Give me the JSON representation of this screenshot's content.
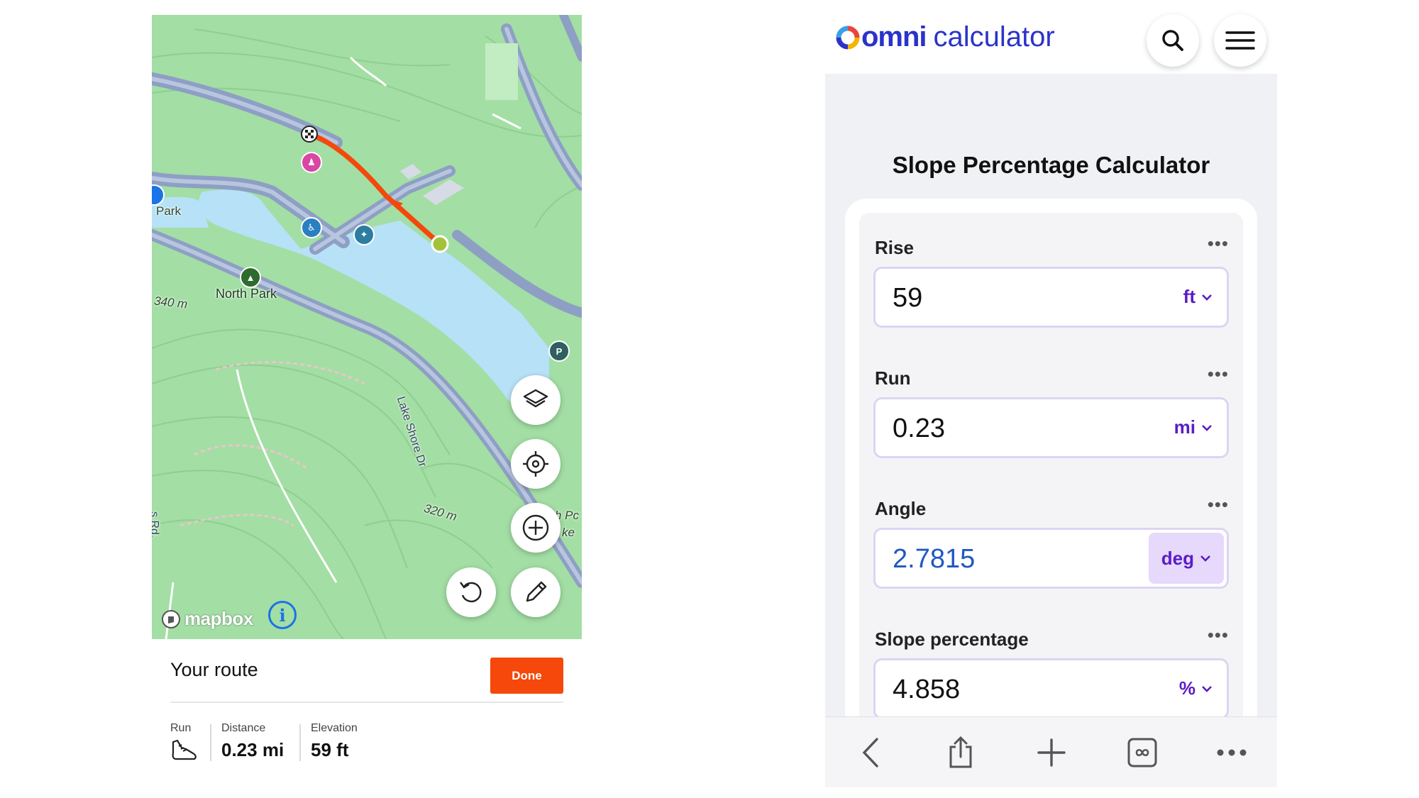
{
  "map_app": {
    "map_labels": {
      "park_left": "Park",
      "north_park": "North Park",
      "elevation_340": "340 m",
      "lake_shore_dr": "Lake Shore Dr",
      "elevation_320": "320 m",
      "rd_left": "s Rd.",
      "edge_pc": "h Pc",
      "edge_ke": "ke"
    },
    "attribution": "mapbox",
    "route_title": "Your route",
    "done_label": "Done",
    "stats": {
      "activity_label": "Run",
      "distance_label": "Distance",
      "distance_value": "0.23 mi",
      "elevation_label": "Elevation",
      "elevation_value": "59 ft"
    },
    "colors": {
      "route": "#f5480a",
      "map_green": "#9fdca0",
      "water": "#b7e1f7"
    },
    "icons": [
      "layers-icon",
      "locate-icon",
      "zoom-in-icon",
      "undo-icon",
      "pencil-icon",
      "info-icon",
      "shoe-icon"
    ]
  },
  "calculator": {
    "brand_main": "omni",
    "brand_sub": "calculator",
    "title": "Slope Percentage Calculator",
    "fields": [
      {
        "label": "Rise",
        "value": "59",
        "unit": "ft"
      },
      {
        "label": "Run",
        "value": "0.23",
        "unit": "mi"
      },
      {
        "label": "Angle",
        "value": "2.7815",
        "unit": "deg"
      },
      {
        "label": "Slope percentage",
        "value": "4.858",
        "unit": "%"
      }
    ],
    "more_glyph": "•••",
    "colors": {
      "brand": "#2c33c9",
      "unit": "#5b1cc7",
      "computed_value": "#1f58c4"
    },
    "toolbar_icons": [
      "back-icon",
      "share-icon",
      "new-tab-icon",
      "tabs-icon",
      "more-icon"
    ]
  }
}
